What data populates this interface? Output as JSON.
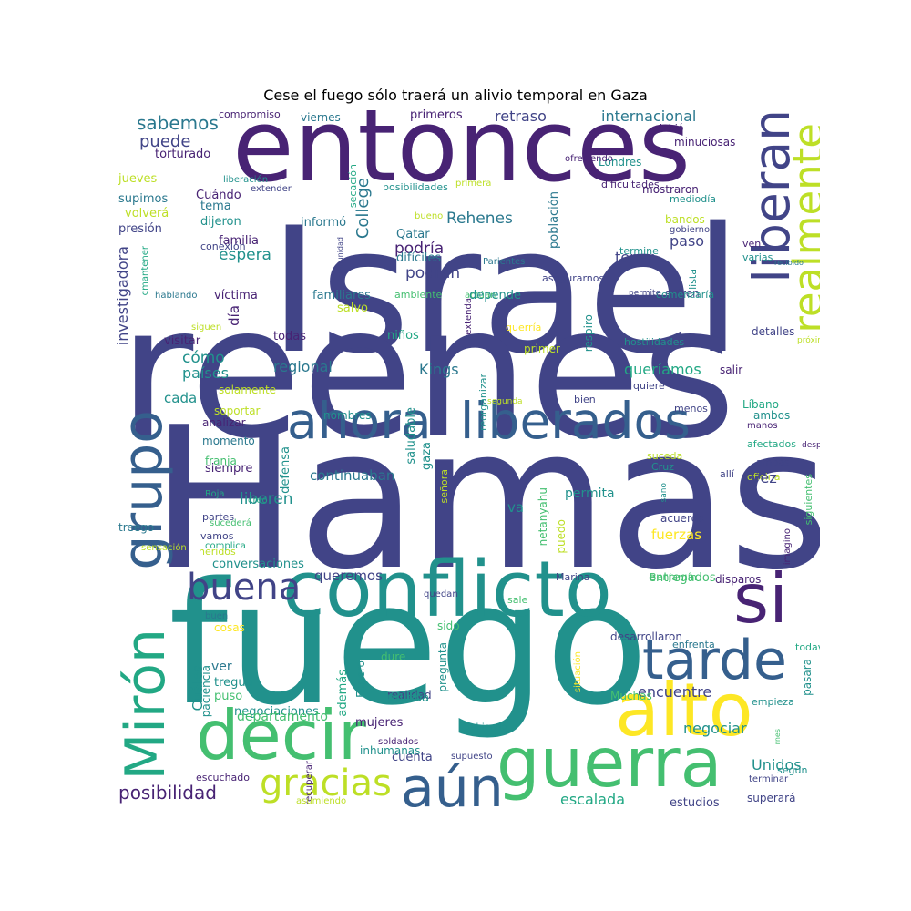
{
  "title": "Cese el fuego sólo traerá un alivio temporal en Gaza",
  "words": [
    "Israel",
    "reenes",
    "Hamas",
    "fuego",
    "entonces",
    "conflicto",
    "alto",
    "guerra",
    "decir",
    "ahora",
    "liberados",
    "grupo",
    "Mirón",
    "si",
    "tarde",
    "aún",
    "buena",
    "gracias",
    "liberan",
    "realmente",
    "posibilidad",
    "escalada",
    "internacional",
    "sabemos",
    "puede",
    "retraso",
    "Rehenes",
    "podría",
    "podrán",
    "tener",
    "paso",
    "espera",
    "College",
    "Kings",
    "regional",
    "queríamos",
    "cómo",
    "países",
    "cada",
    "investigadora",
    "víctima",
    "día",
    "visitar",
    "todas",
    "niños",
    "familiares",
    "salvo",
    "ambiente",
    "primeros",
    "compromiso",
    "viernes",
    "torturado",
    "debió",
    "minuciosas",
    "Londres",
    "mostraron",
    "mediodía",
    "bandos",
    "gobierno",
    "termine",
    "varias",
    "sufren",
    "comenzaría",
    "ven",
    "lista",
    "detalles",
    "salir",
    "respiro",
    "primer",
    "asegurarnos",
    "bien",
    "menos",
    "Líbano",
    "afectados",
    "ambos",
    "manos",
    "después",
    "ambas",
    "oficina",
    "vez",
    "Cruz",
    "allí",
    "suceda",
    "sano",
    "acuerdo",
    "fuerzas",
    "encuentre",
    "negociar",
    "Unidos",
    "estudios",
    "superará",
    "según",
    "terminar",
    "todavía",
    "pasara",
    "empieza",
    "enfrenta",
    "desarrollaron",
    "Muchas",
    "realidad",
    "prueba",
    "dure",
    "sido",
    "sale",
    "Benjamín",
    "entregados",
    "Marina",
    "disparos",
    "imagino",
    "siguientes",
    "va",
    "queremos",
    "conversaciones",
    "heridos",
    "vamos",
    "partes",
    "sucederá",
    "creo",
    "liberen",
    "continuaban",
    "defensa",
    "saludable",
    "gaza",
    "señora",
    "netanyahu",
    "puedo",
    "permita",
    "siempre",
    "franja",
    "momento",
    "analizar",
    "nombres",
    "soportar",
    "solamente",
    "segunda",
    "próxima",
    "hostilidades",
    "quiere",
    "querría",
    "reorganizar",
    "extenda",
    "actúan",
    "Cuáles",
    "ver",
    "tregua",
    "puso",
    "negociaciones",
    "departamento",
    "paciencia",
    "mujeres",
    "inhumanas",
    "cuenta",
    "Sabiendo",
    "supuesto",
    "soldados",
    "recuperar",
    "escuchado",
    "asumiendo",
    "pregunta",
    "Espero",
    "además",
    "quedan",
    "situación",
    "buen",
    "cosas",
    "treego",
    "sensación",
    "complica",
    "Roja",
    "jueves",
    "supimos",
    "volverá",
    "presión",
    "liberación",
    "extender",
    "posibilidades",
    "primera",
    "ofreciendo",
    "dificultades",
    "población",
    "secación",
    "conexión",
    "cmantener",
    "hablando",
    "siguen",
    "bueno",
    "Parientes",
    "difíciles",
    "Qatar",
    "informó",
    "familia",
    "dijeron",
    "tema",
    "Cuándo",
    "comunidad",
    "permite",
    "recibido",
    "depende",
    "rnes"
  ],
  "colors": {
    "dark_purple": "#482374",
    "indigo": "#414487",
    "blue": "#355f8d",
    "teal_blue": "#2a788e",
    "teal": "#21918c",
    "green_teal": "#22a884",
    "green": "#44bf70",
    "light_green": "#7ad151",
    "yellow_green": "#bddf26",
    "yellow": "#fde725"
  }
}
